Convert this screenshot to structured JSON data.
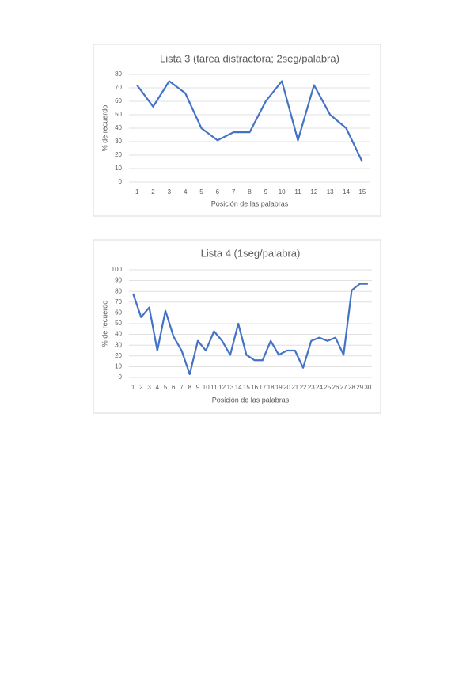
{
  "chart_data": [
    {
      "type": "line",
      "title": "Lista 3 (tarea distractora; 2seg/palabra)",
      "x_label": "Posición de las palabras",
      "y_label": "% de recuerdo",
      "categories": [
        1,
        2,
        3,
        4,
        5,
        6,
        7,
        8,
        9,
        10,
        11,
        12,
        13,
        14,
        15
      ],
      "values": [
        72,
        56,
        75,
        66,
        40,
        31,
        37,
        37,
        60,
        75,
        31,
        72,
        50,
        40,
        15
      ],
      "color": "#4472c4",
      "ylim": [
        0,
        80
      ],
      "yticks": [
        0,
        10,
        20,
        30,
        40,
        50,
        60,
        70,
        80
      ],
      "grid": true
    },
    {
      "type": "line",
      "title": "Lista 4 (1seg/palabra)",
      "x_label": "Posición de las palabras",
      "y_label": "% de recuerdo",
      "categories": [
        1,
        2,
        3,
        4,
        5,
        6,
        7,
        8,
        9,
        10,
        11,
        12,
        13,
        14,
        15,
        16,
        17,
        18,
        19,
        20,
        21,
        22,
        23,
        24,
        25,
        26,
        27,
        28,
        29,
        30
      ],
      "values": [
        78,
        56,
        65,
        25,
        62,
        38,
        25,
        3,
        34,
        25,
        43,
        34,
        21,
        50,
        21,
        16,
        16,
        34,
        21,
        25,
        25,
        9,
        34,
        37,
        34,
        37,
        21,
        81,
        87,
        87
      ],
      "color": "#4472c4",
      "ylim": [
        0,
        100
      ],
      "yticks": [
        0,
        10,
        20,
        30,
        40,
        50,
        60,
        70,
        80,
        90,
        100
      ],
      "grid": true
    }
  ]
}
